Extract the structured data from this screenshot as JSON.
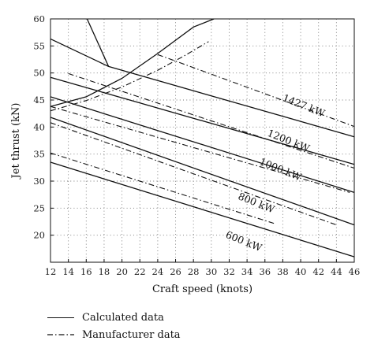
{
  "chart_data": {
    "type": "line",
    "title": "",
    "xlabel": "Craft speed (knots)",
    "ylabel": "Jet thrust (kN)",
    "xlim": [
      12,
      46
    ],
    "ylim": [
      15,
      60
    ],
    "xticks": [
      12,
      14,
      16,
      18,
      20,
      22,
      24,
      26,
      28,
      30,
      32,
      34,
      36,
      38,
      40,
      42,
      44,
      46
    ],
    "yticks": [
      20,
      25,
      30,
      35,
      40,
      45,
      50,
      55,
      60
    ],
    "grid": "dotted",
    "legend": {
      "placement": "below",
      "entries": [
        {
          "label": "Calculated data",
          "style": "solid"
        },
        {
          "label": "Manufacturer data",
          "style": "dash-dot"
        }
      ]
    },
    "power_curves": [
      {
        "label": "1427 kW",
        "calculated": {
          "x": [
            12,
            18.5,
            46
          ],
          "y": [
            56.3,
            51.2,
            38.2
          ]
        },
        "manufacturer": {
          "x": [
            24,
            46
          ],
          "y": [
            53.4,
            40.1
          ]
        }
      },
      {
        "label": "1200 kW",
        "calculated": {
          "x": [
            12,
            46
          ],
          "y": [
            49.2,
            33.1
          ]
        },
        "manufacturer": {
          "x": [
            14,
            46
          ],
          "y": [
            49.9,
            32.4
          ]
        }
      },
      {
        "label": "1000 kW",
        "calculated": {
          "x": [
            12,
            46
          ],
          "y": [
            45.6,
            27.9
          ]
        },
        "manufacturer": {
          "x": [
            12,
            45.5
          ],
          "y": [
            43.8,
            27.9
          ]
        }
      },
      {
        "label": "800 kW",
        "calculated": {
          "x": [
            12,
            46
          ],
          "y": [
            41.8,
            21.9
          ]
        },
        "manufacturer": {
          "x": [
            12,
            44
          ],
          "y": [
            40.8,
            21.9
          ]
        }
      },
      {
        "label": "600 kW",
        "calculated": {
          "x": [
            12,
            46
          ],
          "y": [
            33.5,
            16.0
          ]
        },
        "manufacturer": {
          "x": [
            12,
            37
          ],
          "y": [
            35.2,
            22.2
          ]
        }
      }
    ],
    "resistance_curves": [
      {
        "style": "solid",
        "x": [
          12,
          16,
          20,
          24,
          28,
          30.3
        ],
        "y": [
          43.8,
          45.6,
          49.0,
          53.6,
          58.5,
          60
        ]
      },
      {
        "style": "dash-dot",
        "x": [
          12,
          16,
          20,
          24,
          27,
          29.7
        ],
        "y": [
          43.0,
          44.9,
          47.4,
          50.5,
          53.2,
          55.8
        ]
      }
    ],
    "early_line_start": {
      "1427 kW": {
        "x": [
          16.1,
          18.5
        ],
        "y": [
          60,
          51.2
        ]
      }
    }
  }
}
